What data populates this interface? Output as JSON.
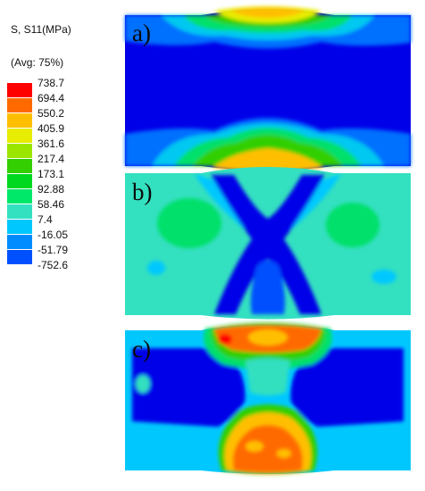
{
  "legend": {
    "title_line1": "S, S11(MPa)",
    "title_line2": "(Avg: 75%)",
    "ticks": [
      "738.7",
      "694.4",
      "550.2",
      "405.9",
      "361.6",
      "217.4",
      "173.1",
      "92.88",
      "58.46",
      "7.4",
      "-16.05",
      "-51.79",
      "-752.6"
    ],
    "colors": [
      "#ff0000",
      "#ff6a00",
      "#ffbf00",
      "#e8ec00",
      "#9ae600",
      "#33cf00",
      "#00d820",
      "#00e86a",
      "#33e0c0",
      "#00c8ff",
      "#008cff",
      "#0050ff",
      "#0000f0"
    ]
  },
  "panels": [
    {
      "label": "a)"
    },
    {
      "label": "b)"
    },
    {
      "label": "c)"
    }
  ]
}
